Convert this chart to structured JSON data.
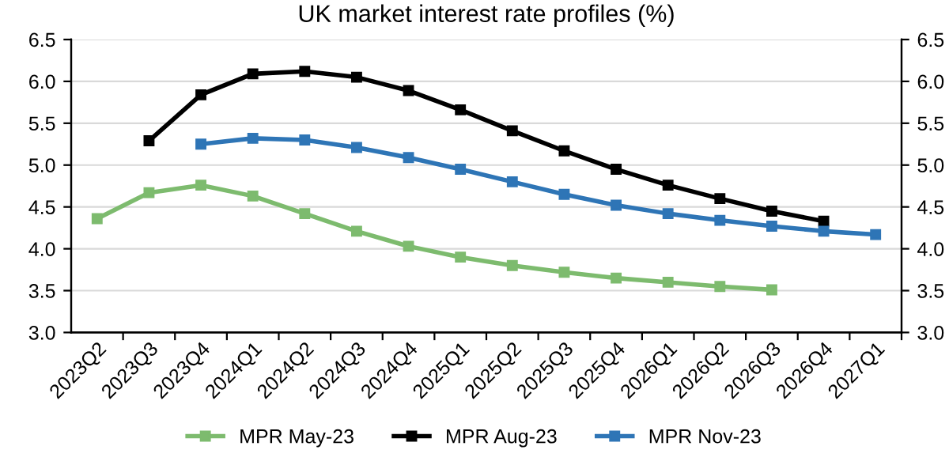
{
  "chart_data": {
    "type": "line",
    "title": "UK market interest rate profiles (%)",
    "categories": [
      "2023Q2",
      "2023Q3",
      "2023Q4",
      "2024Q1",
      "2024Q2",
      "2024Q3",
      "2024Q4",
      "2025Q1",
      "2025Q2",
      "2025Q3",
      "2025Q4",
      "2026Q1",
      "2026Q2",
      "2026Q3",
      "2026Q4",
      "2027Q1"
    ],
    "series": [
      {
        "name": "MPR May-23",
        "color": "#7dbb6e",
        "values": [
          4.36,
          4.67,
          4.76,
          4.63,
          4.42,
          4.21,
          4.03,
          3.9,
          3.8,
          3.72,
          3.65,
          3.6,
          3.55,
          3.51,
          null,
          null
        ]
      },
      {
        "name": "MPR Aug-23",
        "color": "#000000",
        "values": [
          null,
          5.29,
          5.84,
          6.09,
          6.12,
          6.05,
          5.89,
          5.66,
          5.41,
          5.17,
          4.95,
          4.76,
          4.6,
          4.45,
          4.33,
          null
        ]
      },
      {
        "name": "MPR Nov-23",
        "color": "#2e75b6",
        "values": [
          null,
          null,
          5.25,
          5.32,
          5.3,
          5.21,
          5.09,
          4.95,
          4.8,
          4.65,
          4.52,
          4.42,
          4.34,
          4.27,
          4.21,
          4.17
        ]
      }
    ],
    "ylim": [
      3.0,
      6.5
    ],
    "yticks": [
      {
        "value": 3.0,
        "label": "3.0"
      },
      {
        "value": 3.5,
        "label": "3.5"
      },
      {
        "value": 4.0,
        "label": "4.0"
      },
      {
        "value": 4.5,
        "label": "4.5"
      },
      {
        "value": 5.0,
        "label": "5.0"
      },
      {
        "value": 5.5,
        "label": "5.5"
      },
      {
        "value": 6.0,
        "label": "6.0"
      },
      {
        "value": 6.5,
        "label": "6.5"
      }
    ],
    "y2lim": [
      3.0,
      6.5
    ],
    "y2ticks": [
      {
        "value": 3.0,
        "label": "3.0"
      },
      {
        "value": 3.5,
        "label": "3.5"
      },
      {
        "value": 4.0,
        "label": "4.0"
      },
      {
        "value": 4.5,
        "label": "4.5"
      },
      {
        "value": 5.0,
        "label": "5.0"
      },
      {
        "value": 5.5,
        "label": "5.5"
      },
      {
        "value": 6.0,
        "label": "6.0"
      },
      {
        "value": 6.5,
        "label": "6.5"
      }
    ],
    "grid": "y",
    "legend": "bottom",
    "marker": "square",
    "line_style": "solid"
  }
}
